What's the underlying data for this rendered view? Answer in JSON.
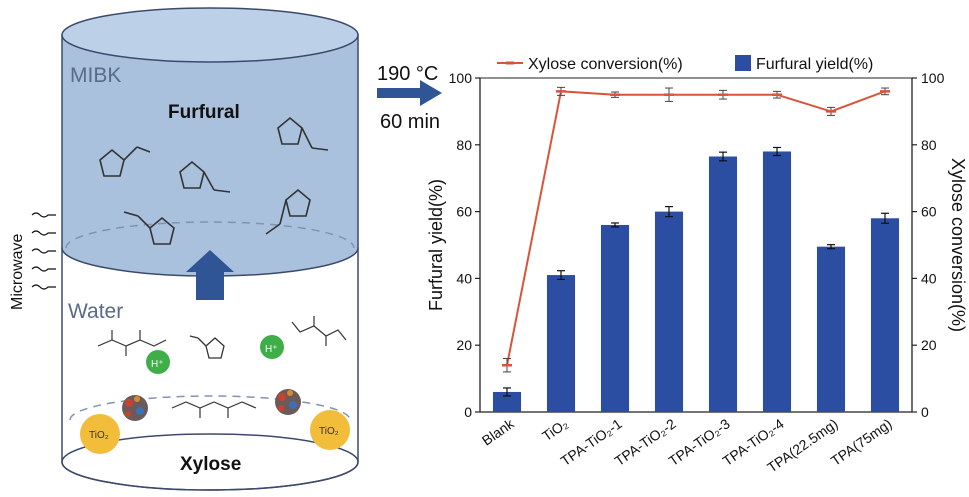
{
  "diagram": {
    "phase_top": "MIBK",
    "product": "Furfural",
    "phase_bottom": "Water",
    "reactant": "Xylose",
    "energy": "Microwave",
    "proton": "H⁺",
    "catalyst": "TiO₂",
    "condition_temp": "190 °C",
    "condition_time": "60 min",
    "colors": {
      "mibk": "#a9c1dc",
      "arrow": "#2f5597",
      "proton": "#3fae49",
      "catalyst": "#f3bd3c"
    }
  },
  "chart_data": {
    "type": "bar+line",
    "categories": [
      "Blank",
      "TiO₂",
      "TPA-TiO₂-1",
      "TPA-TiO₂-2",
      "TPA-TiO₂-3",
      "TPA-TiO₂-4",
      "TPA(22.5mg)",
      "TPA(75mg)"
    ],
    "series": [
      {
        "name": "Furfural yield(%)",
        "type": "bar",
        "axis": "left",
        "color": "#2b4da2",
        "values": [
          6,
          41,
          56,
          60,
          76.5,
          78,
          49.5,
          58
        ],
        "errors": [
          1.2,
          1.3,
          0.6,
          1.5,
          1.3,
          1.2,
          0.6,
          1.5
        ]
      },
      {
        "name": "Xylose conversion(%)",
        "type": "line",
        "axis": "right",
        "color": "#d9553a",
        "values": [
          14,
          96,
          95,
          95,
          95,
          95,
          90,
          96
        ],
        "errors": [
          2,
          1.2,
          0.8,
          2,
          1.3,
          1,
          1.2,
          1
        ]
      }
    ],
    "ylabel_left": "Furfural yield(%)",
    "ylabel_right": "Xylose conversion(%)",
    "ylim_left": [
      0,
      100
    ],
    "ylim_right": [
      0,
      100
    ],
    "yticks": [
      "0",
      "20",
      "40",
      "60",
      "80",
      "100"
    ],
    "legend_position": "top",
    "grid": false
  }
}
